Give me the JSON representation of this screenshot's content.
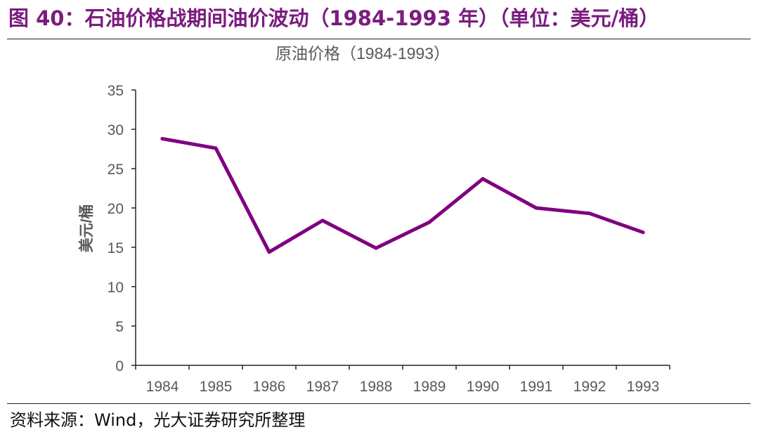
{
  "figure": {
    "caption": "图 40：石油价格战期间油价波动（1984-1993 年）（单位：美元/桶）",
    "source": "资料来源：Wind，光大证券研究所整理"
  },
  "colors": {
    "accent": "#7b1c7f",
    "line": "#800080",
    "axis_text": "#595959",
    "axis_line": "#262626"
  },
  "chart_data": {
    "type": "line",
    "title": "原油价格（1984-1993）",
    "xlabel": "",
    "ylabel": "美元/桶",
    "categories": [
      "1984",
      "1985",
      "1986",
      "1987",
      "1988",
      "1989",
      "1990",
      "1991",
      "1992",
      "1993"
    ],
    "series": [
      {
        "values": [
          28.8,
          27.6,
          14.4,
          18.4,
          14.9,
          18.2,
          23.7,
          20.0,
          19.3,
          16.9
        ]
      }
    ],
    "ylim": [
      0,
      35
    ],
    "yticks": [
      "0",
      "5",
      "10",
      "15",
      "20",
      "25",
      "30",
      "35"
    ],
    "grid": false,
    "legend": "none"
  }
}
